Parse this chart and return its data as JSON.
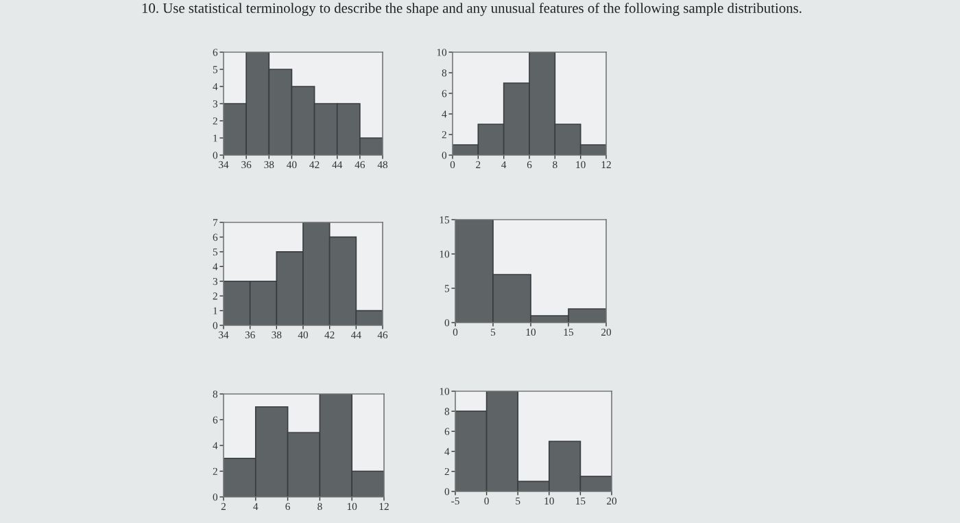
{
  "chart_data": [
    {
      "type": "histogram",
      "title": "10. Use statistical terminology to describe the shape and any unusual features of the following sample distributions.",
      "bins": [
        34,
        36,
        38,
        40,
        42,
        44,
        46,
        48
      ],
      "values": [
        3,
        6,
        5,
        4,
        3,
        3,
        1
      ],
      "color": "#5e6366",
      "xlim": [
        34,
        48
      ],
      "ylim": [
        0,
        6
      ],
      "xticks": [
        34,
        36,
        38,
        40,
        42,
        44,
        46,
        48
      ],
      "yticks": [
        0,
        1,
        2,
        3,
        4,
        5,
        6
      ],
      "grid": false,
      "legend": false
    },
    {
      "type": "histogram",
      "bins": [
        0,
        2,
        4,
        6,
        8,
        10,
        12
      ],
      "values": [
        1,
        3,
        7,
        10,
        3,
        1
      ],
      "color": "#5e6366",
      "xlim": [
        0,
        12
      ],
      "ylim": [
        0,
        10
      ],
      "xticks": [
        0,
        2,
        4,
        6,
        8,
        10,
        12
      ],
      "yticks": [
        0,
        2,
        4,
        6,
        8,
        10
      ],
      "grid": false,
      "legend": false
    },
    {
      "type": "histogram",
      "bins": [
        34,
        36,
        38,
        40,
        42,
        44,
        46
      ],
      "values": [
        3,
        3,
        5,
        7,
        6,
        1
      ],
      "color": "#5e6366",
      "xlim": [
        34,
        46
      ],
      "ylim": [
        0,
        7
      ],
      "xticks": [
        34,
        36,
        38,
        40,
        42,
        44,
        46
      ],
      "yticks": [
        0,
        1,
        2,
        3,
        4,
        5,
        6,
        7
      ],
      "grid": false,
      "legend": false
    },
    {
      "type": "histogram",
      "bins": [
        0,
        5,
        10,
        15,
        20
      ],
      "values": [
        15,
        7,
        1,
        2
      ],
      "color": "#5e6366",
      "xlim": [
        0,
        20
      ],
      "ylim": [
        0,
        15
      ],
      "xticks": [
        0,
        5,
        10,
        15,
        20
      ],
      "yticks": [
        0,
        5,
        10,
        15
      ],
      "grid": false,
      "legend": false
    },
    {
      "type": "histogram",
      "bins": [
        2,
        4,
        6,
        8,
        10,
        12
      ],
      "values": [
        3,
        7,
        5,
        8,
        2
      ],
      "color": "#5e6366",
      "xlim": [
        2,
        12
      ],
      "ylim": [
        0,
        8
      ],
      "xticks": [
        2,
        4,
        6,
        8,
        10,
        12
      ],
      "yticks": [
        0,
        2,
        4,
        6,
        8
      ],
      "grid": false,
      "legend": false
    },
    {
      "type": "histogram",
      "bins": [
        -5,
        0,
        5,
        10,
        15,
        20
      ],
      "values": [
        8,
        10,
        1,
        5,
        1.5
      ],
      "color": "#5e6366",
      "xlim": [
        -5,
        20
      ],
      "ylim": [
        0,
        10
      ],
      "xticks": [
        -5,
        0,
        5,
        10,
        15,
        20
      ],
      "yticks": [
        0,
        2,
        4,
        6,
        8,
        10
      ],
      "grid": false,
      "legend": false
    }
  ]
}
